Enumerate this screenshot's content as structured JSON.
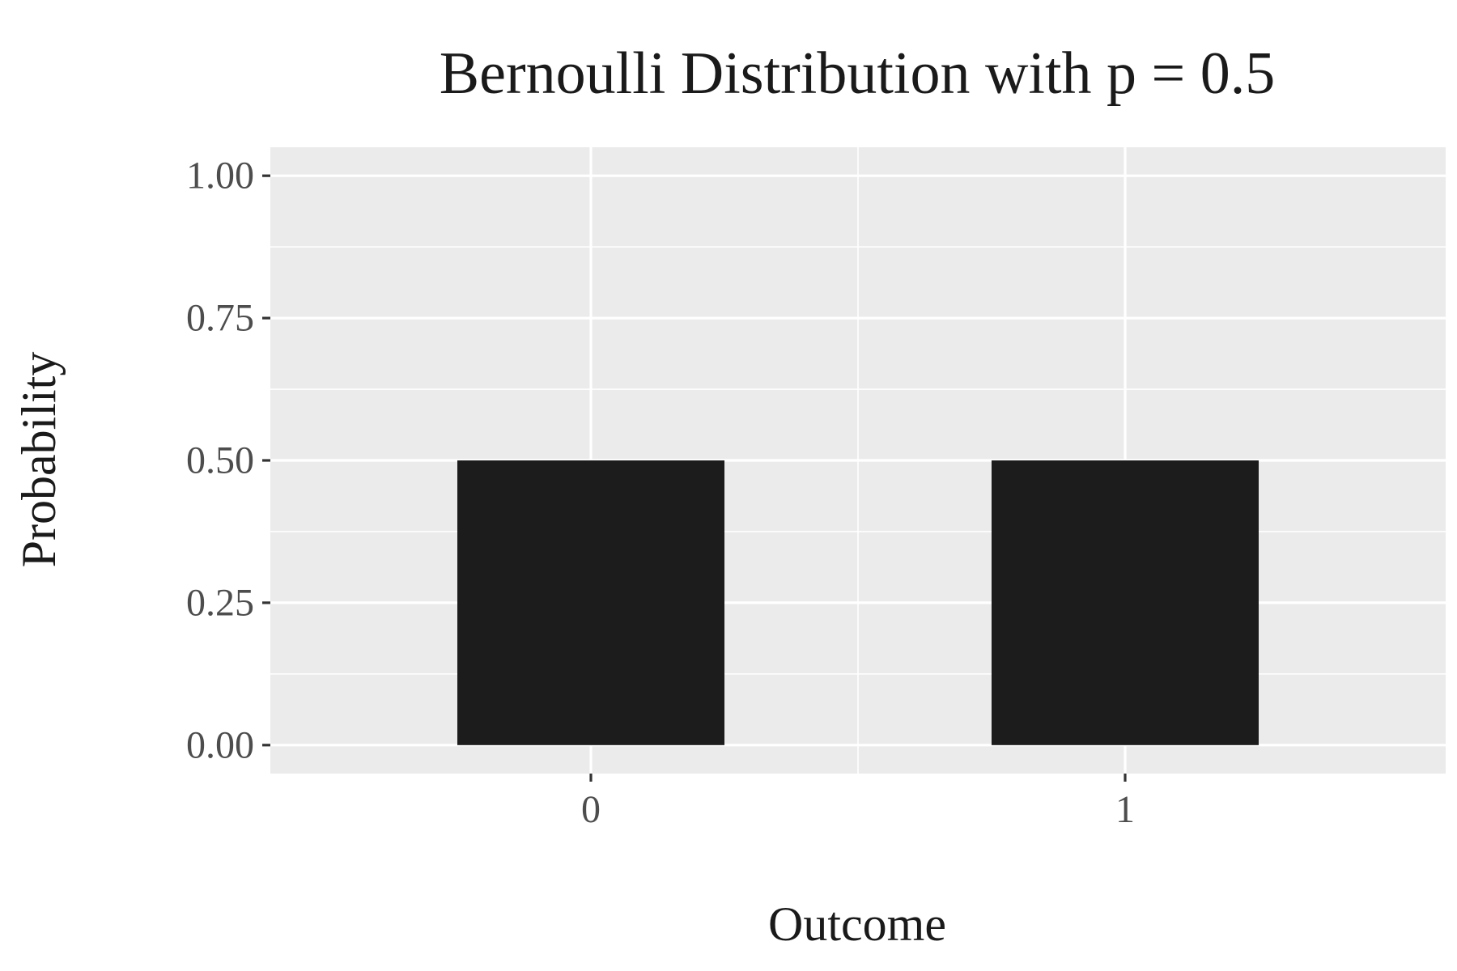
{
  "chart_data": {
    "type": "bar",
    "title": "Bernoulli Distribution with p = 0.5",
    "xlabel": "Outcome",
    "ylabel": "Probability",
    "categories": [
      "0",
      "1"
    ],
    "values": [
      0.5,
      0.5
    ],
    "ylim": [
      -0.05,
      1.05
    ],
    "yticks": [
      0,
      0.25,
      0.5,
      0.75,
      1
    ],
    "ytick_labels": [
      "0.00",
      "0.25",
      "0.50",
      "0.75",
      "1.00"
    ],
    "grid": true,
    "legend": "none",
    "colors": {
      "bar": "#1c1c1c",
      "panel": "#ebebeb",
      "grid": "#ffffff",
      "tick": "#333333"
    }
  }
}
